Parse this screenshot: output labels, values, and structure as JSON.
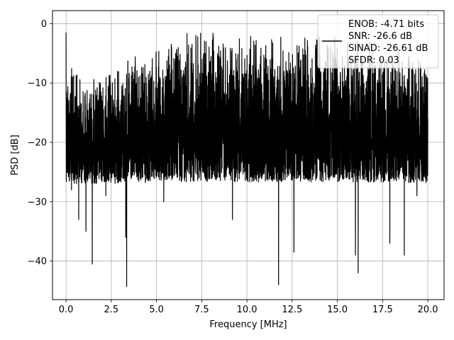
{
  "chart_data": {
    "type": "line",
    "title": "",
    "xlabel": "Frequency [MHz]",
    "ylabel": "PSD [dB]",
    "xlim": [
      -0.75,
      20.9
    ],
    "ylim": [
      -46.5,
      2.2
    ],
    "xticks": [
      0.0,
      2.5,
      5.0,
      7.5,
      10.0,
      12.5,
      15.0,
      17.5,
      20.0
    ],
    "xtick_labels": [
      "0.0",
      "2.5",
      "5.0",
      "7.5",
      "10.0",
      "12.5",
      "15.0",
      "17.5",
      "20.0"
    ],
    "yticks": [
      0,
      -10,
      -20,
      -30,
      -40
    ],
    "ytick_labels": [
      "0",
      "−10",
      "−20",
      "−30",
      "−40"
    ],
    "grid": true,
    "line_color": "#000000",
    "series": [
      {
        "name": "",
        "x_range": [
          0.0,
          20.0
        ],
        "upper_envelope": [
          [
            0.0,
            -1.5
          ],
          [
            0.2,
            -6
          ],
          [
            1.0,
            -9
          ],
          [
            2.5,
            -7.5
          ],
          [
            3.0,
            -6
          ],
          [
            5.0,
            -4
          ],
          [
            6.5,
            -1
          ],
          [
            7.5,
            -0.5
          ],
          [
            10.0,
            -2
          ],
          [
            12.5,
            -1
          ],
          [
            15.0,
            -1.5
          ],
          [
            17.5,
            -2.5
          ],
          [
            20.0,
            -6
          ]
        ],
        "notable_minima": [
          [
            0.18,
            -26
          ],
          [
            0.3,
            -28
          ],
          [
            0.7,
            -33
          ],
          [
            1.1,
            -35
          ],
          [
            1.45,
            -40.5
          ],
          [
            2.2,
            -29
          ],
          [
            3.3,
            -36
          ],
          [
            3.35,
            -44.3
          ],
          [
            5.4,
            -30
          ],
          [
            9.2,
            -33
          ],
          [
            11.75,
            -44
          ],
          [
            12.6,
            -38.5
          ],
          [
            16.0,
            -39
          ],
          [
            16.15,
            -42
          ],
          [
            17.9,
            -37
          ],
          [
            18.7,
            -39
          ],
          [
            19.4,
            -29
          ]
        ],
        "typical_range": [
          -28,
          -3
        ]
      }
    ],
    "legend": {
      "placement": "upper-right",
      "entries": [
        "ENOB: -4.71 bits",
        "SNR: -26.6 dB",
        "SINAD: -26.61 dB",
        "SFDR: 0.03"
      ]
    }
  }
}
